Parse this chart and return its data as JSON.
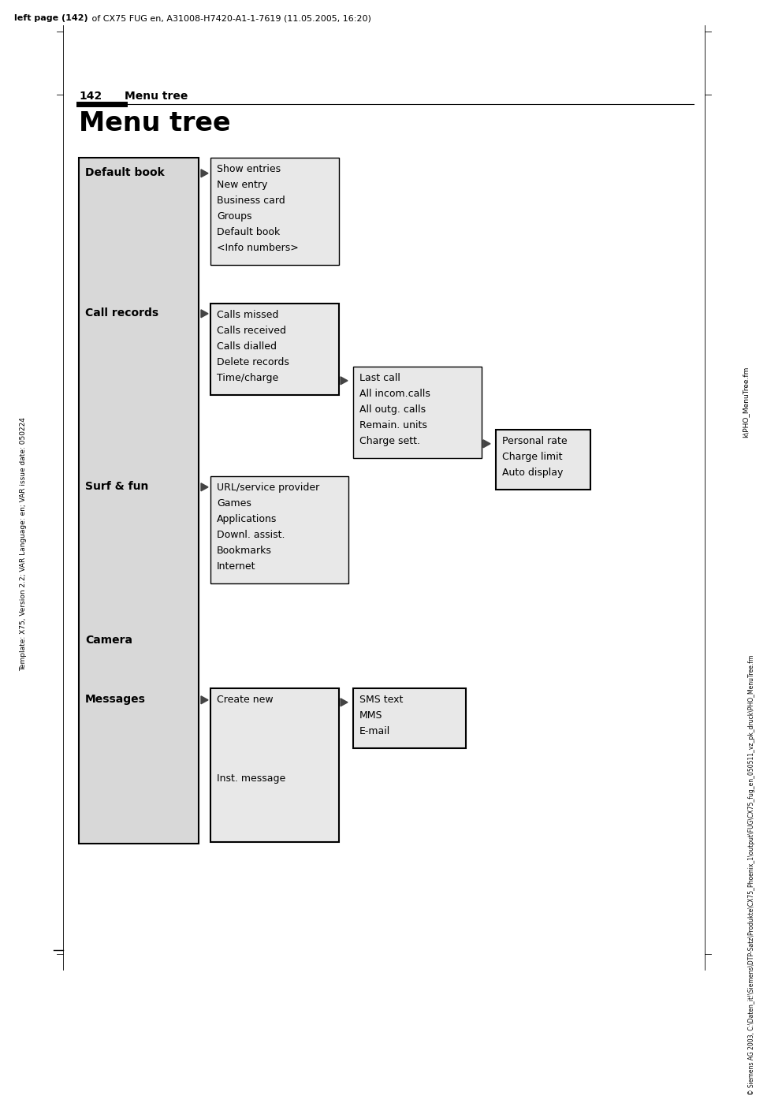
{
  "page_header": "left page (142) of CX75 FUG en, A31008-H7420-A1-1-7619 (11.05.2005, 16:20)",
  "left_side_text": "Template: X75, Version 2.2; VAR Language: en; VAR issue date: 050224",
  "right_margin_text": "k\\PHO_MenuTree.fm",
  "copyright": "© Siemens AG 2003, C:\\Daten_it!\\Siemens\\DTP-Satz\\Produkte\\CX75_Phoenix_1\\output\\FUG\\CX75_fug_en_050511_vz_pk_druck\\PHO_MenuTree.fm",
  "page_number": "142",
  "section_title_small": "Menu tree",
  "section_title_large": "Menu tree",
  "bg_color": "#ffffff",
  "default_book_items": [
    "Show entries",
    "New entry",
    "Business card",
    "Groups",
    "Default book",
    "<Info numbers>"
  ],
  "call_records_items": [
    "Calls missed",
    "Calls received",
    "Calls dialled",
    "Delete records",
    "Time/charge"
  ],
  "time_charge_items": [
    "Last call",
    "All incom.calls",
    "All outg. calls",
    "Remain. units",
    "Charge sett."
  ],
  "charge_sett_items": [
    "Personal rate",
    "Charge limit",
    "Auto display"
  ],
  "surf_fun_items": [
    "URL/service provider",
    "Games",
    "Applications",
    "Downl. assist.",
    "Bookmarks",
    "Internet"
  ],
  "messages_items_top": "Create new",
  "messages_items_bot": "Inst. message",
  "messages_level2": [
    "SMS text",
    "MMS",
    "E-mail"
  ]
}
